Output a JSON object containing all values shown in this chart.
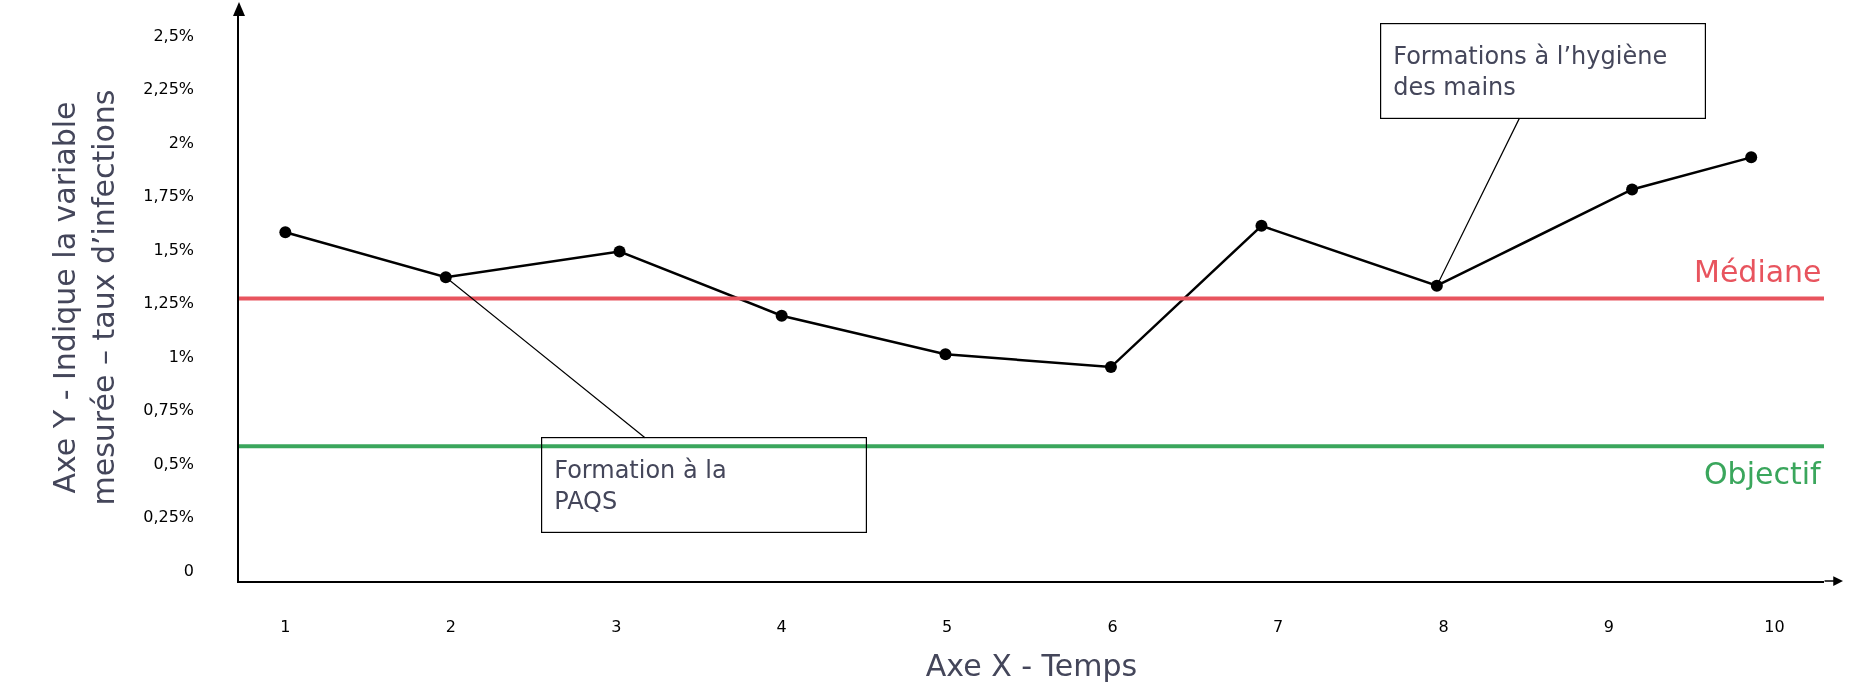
{
  "chart_data": {
    "type": "line",
    "xlabel": "Axe X - Temps",
    "ylabel": "Axe Y - Indique la variable\nmesurée – taux d’infections",
    "x": [
      1,
      1.97,
      3.02,
      4,
      4.99,
      5.99,
      6.9,
      7.96,
      9.14,
      9.86
    ],
    "series": [
      {
        "color": "#000000",
        "values": [
          1.58,
          1.37,
          1.49,
          1.19,
          1.01,
          0.95,
          1.61,
          1.33,
          1.78,
          1.93
        ]
      }
    ],
    "xlim": [
      0.72,
      10.3
    ],
    "xticks": [
      1,
      2,
      3,
      4,
      5,
      6,
      7,
      8,
      9,
      10
    ],
    "ylim": [
      -0.05,
      2.6
    ],
    "yticks": [
      {
        "value": 0,
        "label": "0"
      },
      {
        "value": 0.25,
        "label": "0,25%"
      },
      {
        "value": 0.5,
        "label": "0,5%"
      },
      {
        "value": 0.75,
        "label": "0,75%"
      },
      {
        "value": 1,
        "label": "1%"
      },
      {
        "value": 1.25,
        "label": "1,25%"
      },
      {
        "value": 1.5,
        "label": "1,5%"
      },
      {
        "value": 1.75,
        "label": "1,75%"
      },
      {
        "value": 2,
        "label": "2%"
      },
      {
        "value": 2.25,
        "label": "2,25%"
      },
      {
        "value": 2.5,
        "label": "2,5%"
      }
    ],
    "ref_lines": [
      {
        "axis": "y",
        "value": 1.27,
        "label": "Médiane",
        "color": "#e8545e"
      },
      {
        "axis": "y",
        "value": 0.58,
        "label": "Objectif",
        "color": "#3aa65c"
      }
    ],
    "annotations": [
      {
        "text": "Formation à la\nPAQS",
        "x": 1.97,
        "y": 1.37
      },
      {
        "text": "Formations à l’hygiène\ndes mains",
        "x": 7.96,
        "y": 1.33
      }
    ],
    "marker": "circle",
    "grid": false,
    "legend": false
  }
}
